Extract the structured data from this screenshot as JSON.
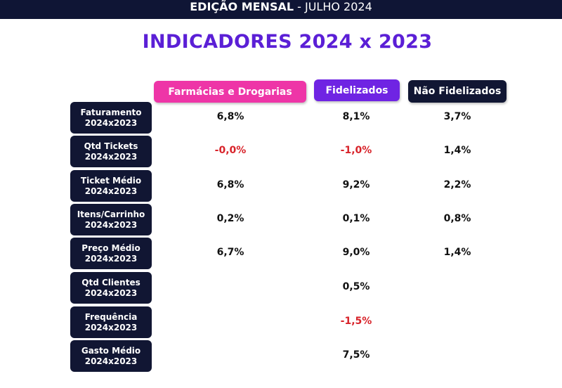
{
  "header": {
    "edition_bold": "EDIÇÃO MENSAL",
    "edition_rest": " - JULHO 2024"
  },
  "title": "INDICADORES 2024 x 2023",
  "columns": [
    "Farmácias e Drogarias",
    "Fidelizados",
    "Não Fidelizados"
  ],
  "colors": {
    "header_bg": "#0f1535",
    "title": "#5b1fd6",
    "farmacias": "#ee35a7",
    "fidelizados": "#6f24e3",
    "nao_fidelizados": "#111633",
    "negative": "#d8232a"
  },
  "rows": [
    {
      "label": "Faturamento",
      "period": "2024x2023",
      "farmacias": "6,8%",
      "fidelizados": "8,1%",
      "nao_fidelizados": "3,7%"
    },
    {
      "label": "Qtd Tickets",
      "period": "2024x2023",
      "farmacias": "-0,0%",
      "fidelizados": "-1,0%",
      "nao_fidelizados": "1,4%"
    },
    {
      "label": "Ticket Médio",
      "period": "2024x2023",
      "farmacias": "6,8%",
      "fidelizados": "9,2%",
      "nao_fidelizados": "2,2%"
    },
    {
      "label": "Itens/Carrinho",
      "period": "2024x2023",
      "farmacias": "0,2%",
      "fidelizados": "0,1%",
      "nao_fidelizados": "0,8%"
    },
    {
      "label": "Preço Médio",
      "period": "2024x2023",
      "farmacias": "6,7%",
      "fidelizados": "9,0%",
      "nao_fidelizados": "1,4%"
    },
    {
      "label": "Qtd Clientes",
      "period": "2024x2023",
      "farmacias": "",
      "fidelizados": "0,5%",
      "nao_fidelizados": ""
    },
    {
      "label": "Frequência",
      "period": "2024x2023",
      "farmacias": "",
      "fidelizados": "-1,5%",
      "nao_fidelizados": ""
    },
    {
      "label": "Gasto Médio",
      "period": "2024x2023",
      "farmacias": "",
      "fidelizados": "7,5%",
      "nao_fidelizados": ""
    }
  ]
}
